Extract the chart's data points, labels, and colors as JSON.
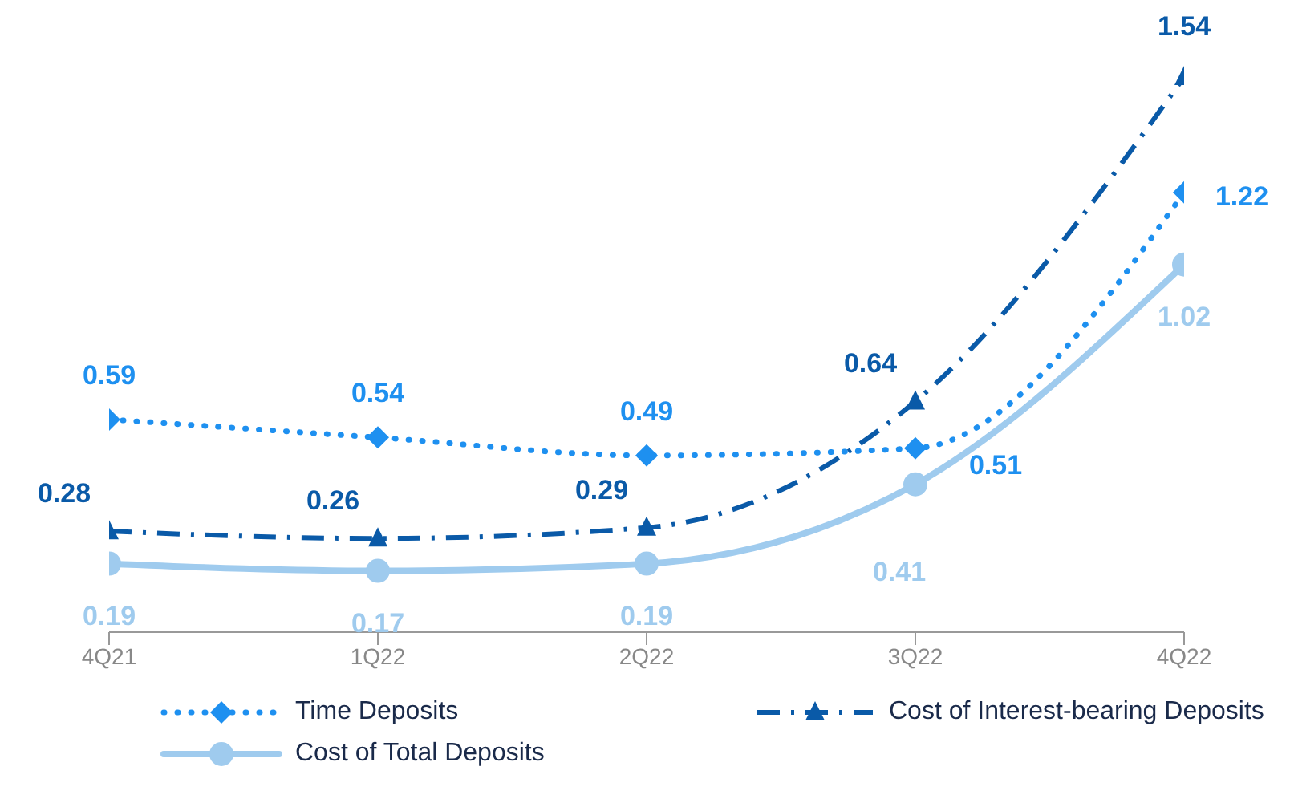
{
  "chart_data": {
    "type": "line",
    "categories": [
      "4Q21",
      "1Q22",
      "2Q22",
      "3Q22",
      "4Q22"
    ],
    "series": [
      {
        "name": "Time Deposits",
        "color": "#1e90f0",
        "values": [
          0.59,
          0.54,
          0.49,
          0.51,
          1.22
        ],
        "marker": "diamond",
        "line_style": "dotted"
      },
      {
        "name": "Cost of Interest-bearing Deposits",
        "color": "#0a5aa8",
        "values": [
          0.28,
          0.26,
          0.29,
          0.64,
          1.54
        ],
        "marker": "triangle",
        "line_style": "dashdot"
      },
      {
        "name": "Cost of Total Deposits",
        "color": "#9fcbee",
        "values": [
          0.19,
          0.17,
          0.19,
          0.41,
          1.02
        ],
        "marker": "circle",
        "line_style": "solid"
      }
    ],
    "data_labels": true,
    "legend": "bottom",
    "grid": false
  }
}
